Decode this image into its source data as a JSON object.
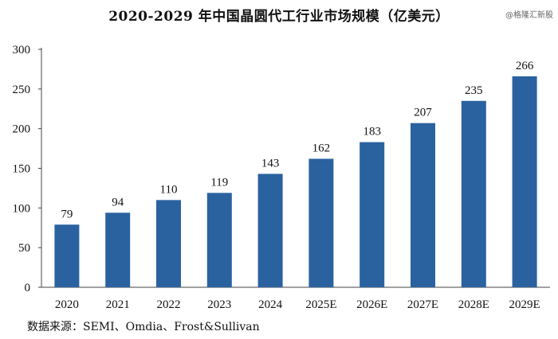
{
  "chart_data": {
    "type": "bar",
    "title": "2020-2029 年中国晶圆代工行业市场规模（亿美元）",
    "categories": [
      "2020",
      "2021",
      "2022",
      "2023",
      "2024",
      "2025E",
      "2026E",
      "2027E",
      "2028E",
      "2029E"
    ],
    "values": [
      79,
      94,
      110,
      119,
      143,
      162,
      183,
      207,
      235,
      266
    ],
    "ylim": [
      0,
      300
    ],
    "yticks": [
      0,
      50,
      100,
      150,
      200,
      250,
      300
    ],
    "xlabel": "",
    "ylabel": "",
    "grid": false,
    "bar_color": "#2a62a0",
    "data_labels": true
  },
  "source_note": "数据来源：SEMI、Omdia、Frost&Sullivan",
  "watermark": "@格隆汇新股"
}
